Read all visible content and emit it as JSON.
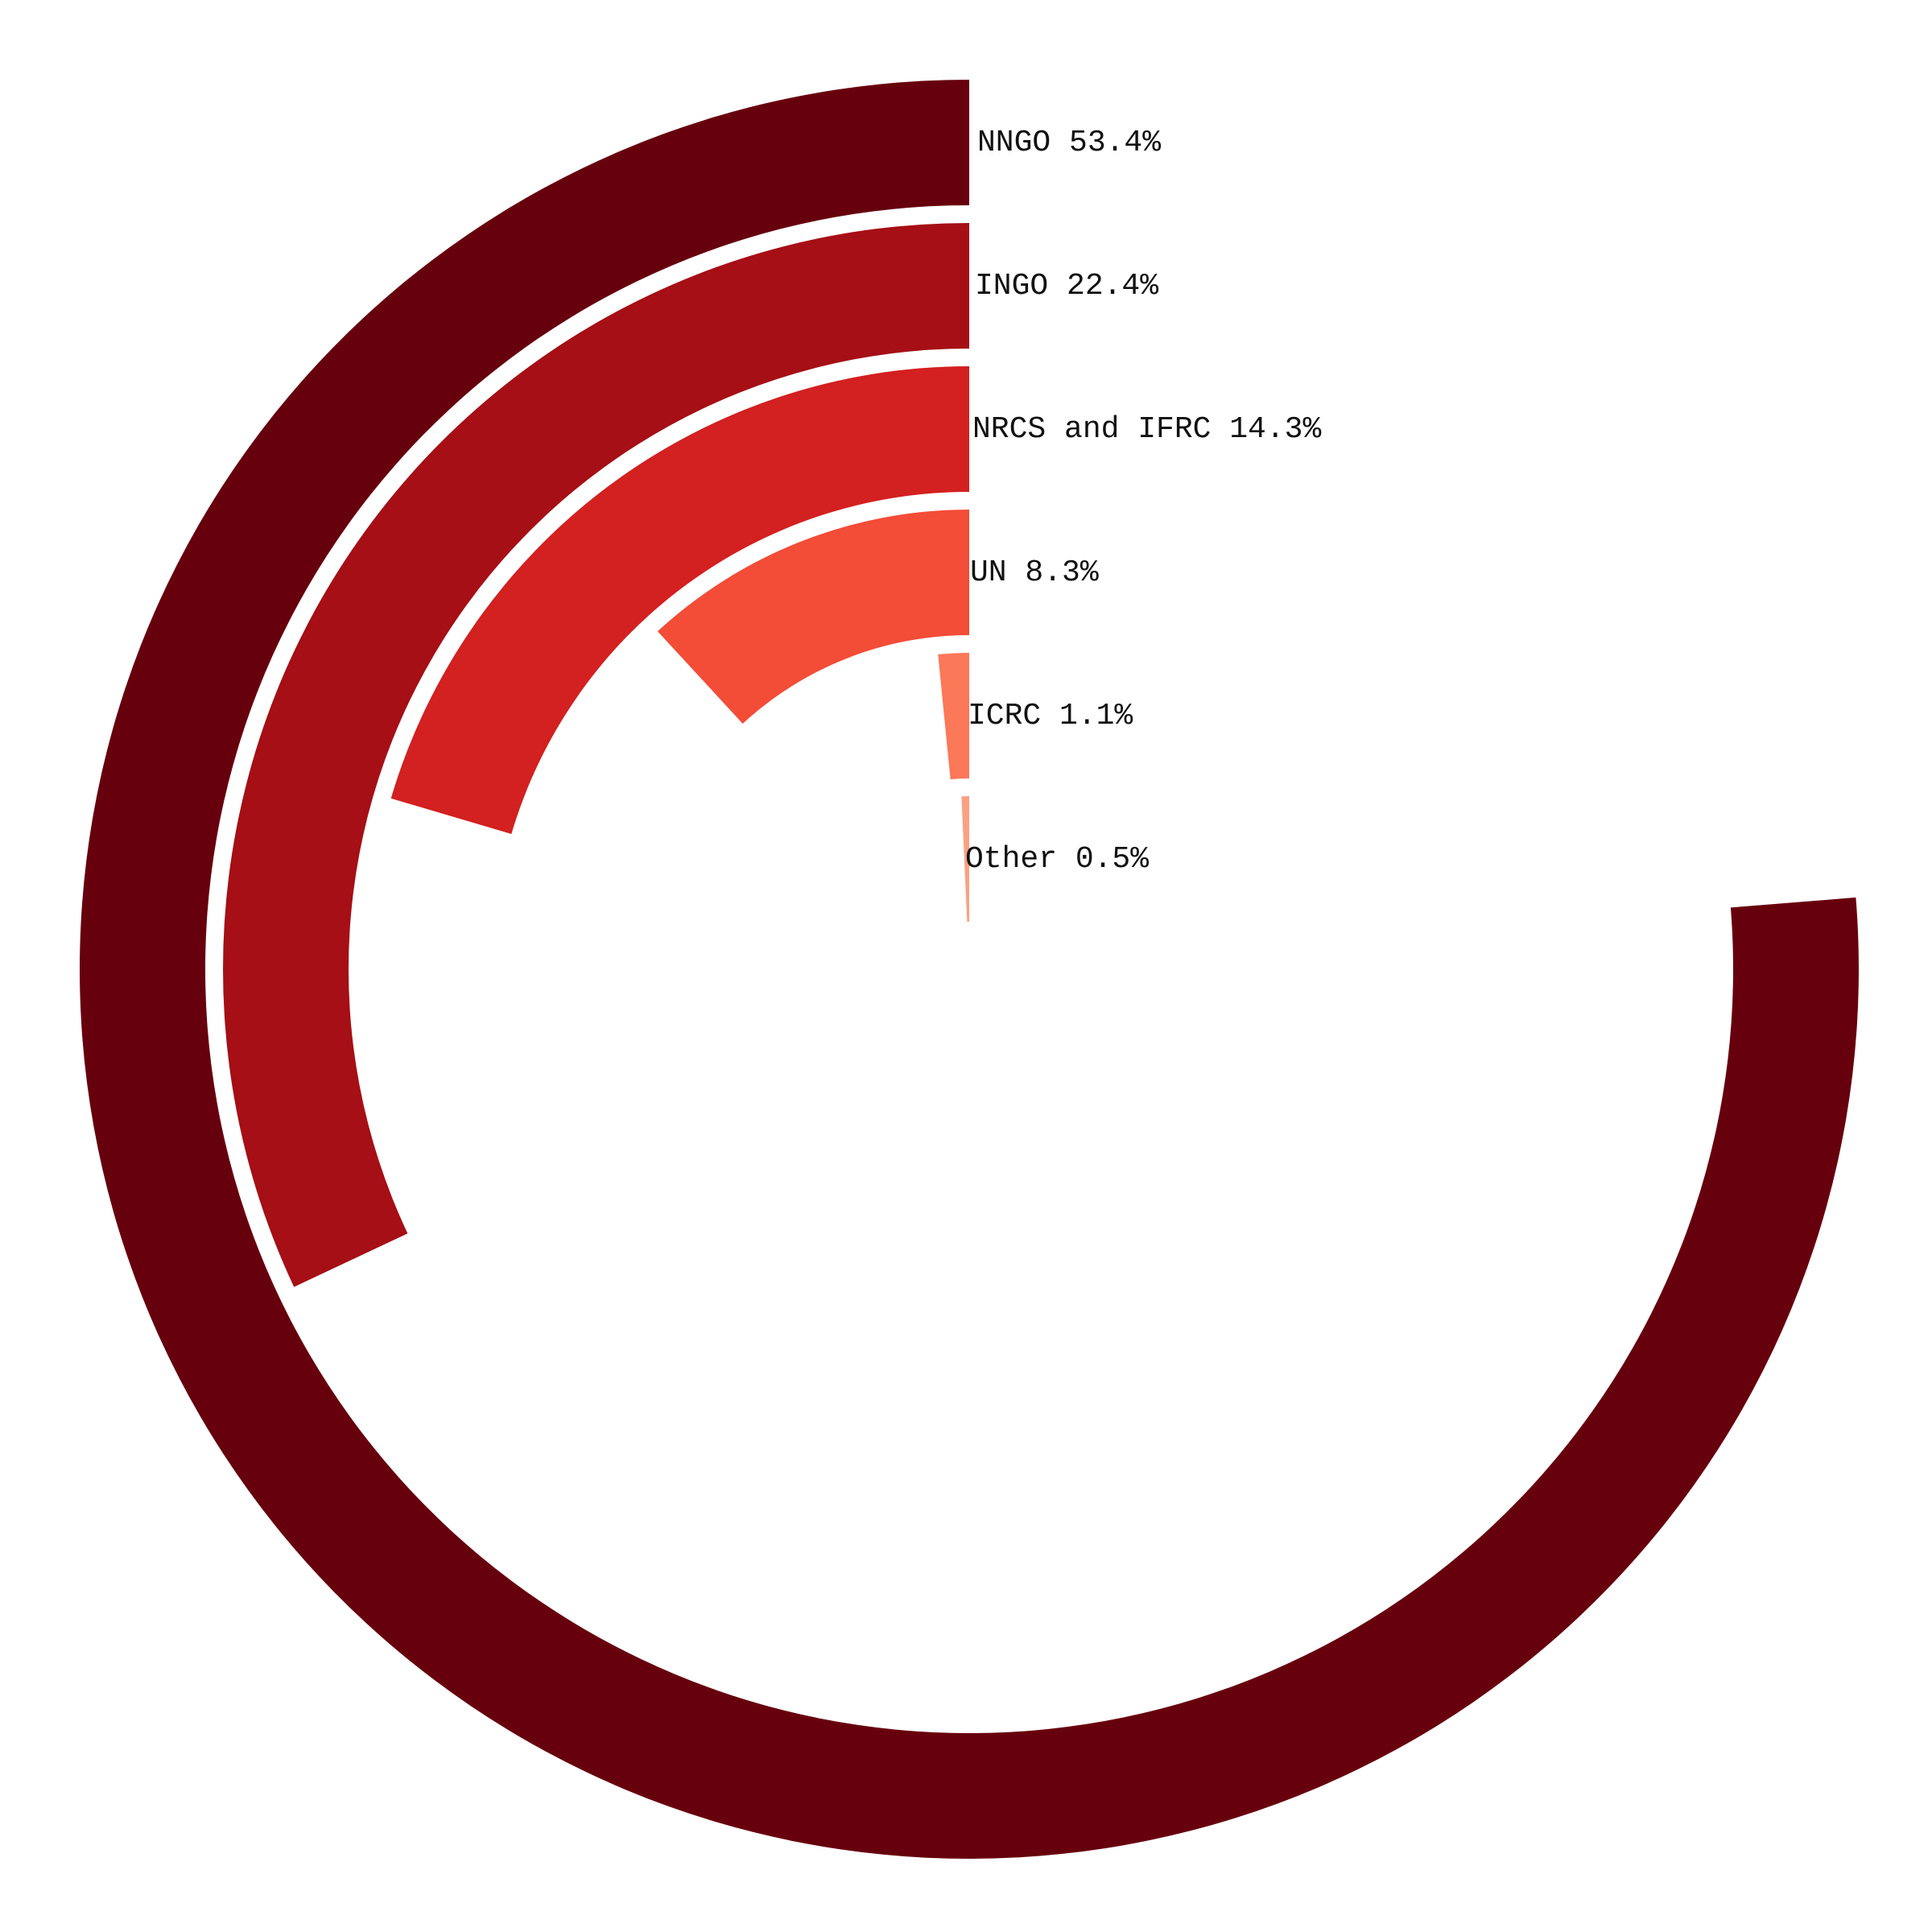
{
  "chart_data": {
    "type": "radial_bar",
    "title": "",
    "max_value": 70,
    "start_direction": "top",
    "rotation": "counterclockwise",
    "series": [
      {
        "name": "NNGO",
        "value": 53.4,
        "label": "NNGO 53.4%",
        "color": "#67000d"
      },
      {
        "name": "INGO",
        "value": 22.4,
        "label": "INGO 22.4%",
        "color": "#a50f15"
      },
      {
        "name": "NRCS and IFRC",
        "value": 14.3,
        "label": "NRCS and IFRC 14.3%",
        "color": "#d32020"
      },
      {
        "name": "UN",
        "value": 8.3,
        "label": "UN 8.3%",
        "color": "#f34c37"
      },
      {
        "name": "ICRC",
        "value": 1.1,
        "label": "ICRC 1.1%",
        "color": "#fb7858"
      },
      {
        "name": "Other",
        "value": 0.5,
        "label": "Other 0.5%",
        "color": "#fca082"
      }
    ]
  }
}
